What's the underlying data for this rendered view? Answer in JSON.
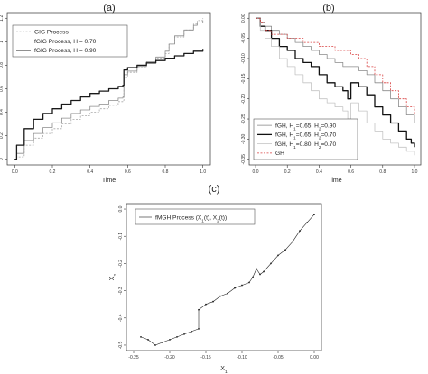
{
  "chart_data": [
    {
      "panel": "(a)",
      "type": "line",
      "xlabel": "Time",
      "ylabel": "",
      "xlim": [
        0,
        1
      ],
      "ylim": [
        0,
        1.2
      ],
      "x_ticks": [
        "0.0",
        "0.2",
        "0.4",
        "0.6",
        "0.8",
        "1.0"
      ],
      "y_ticks": [
        "0",
        "0.2",
        "0.4",
        "0.6",
        "0.8",
        "1",
        "1.2"
      ],
      "legend_position": "top-left",
      "grid": false,
      "series": [
        {
          "name": "GIG Process",
          "color": "#a8a8a8",
          "dash": "2,1.5",
          "width": 0.8,
          "x": [
            0,
            0.01,
            0.05,
            0.1,
            0.15,
            0.2,
            0.25,
            0.3,
            0.35,
            0.4,
            0.45,
            0.5,
            0.55,
            0.575,
            0.58,
            0.6,
            0.65,
            0.7,
            0.75,
            0.8,
            0.82,
            0.85,
            0.9,
            0.95,
            0.97,
            1.0
          ],
          "y": [
            0.0,
            0.02,
            0.12,
            0.18,
            0.22,
            0.26,
            0.3,
            0.34,
            0.37,
            0.4,
            0.43,
            0.46,
            0.49,
            0.5,
            0.7,
            0.74,
            0.78,
            0.82,
            0.86,
            0.9,
            0.98,
            1.04,
            1.1,
            1.15,
            1.18,
            1.2
          ]
        },
        {
          "name": "fGIG Process, H = 0.70",
          "color": "#8c8c8c",
          "dash": "",
          "width": 0.8,
          "x": [
            0,
            0.01,
            0.05,
            0.1,
            0.15,
            0.2,
            0.25,
            0.3,
            0.35,
            0.4,
            0.45,
            0.5,
            0.55,
            0.575,
            0.58,
            0.6,
            0.65,
            0.7,
            0.75,
            0.8,
            0.82,
            0.85,
            0.9,
            0.95,
            0.97,
            1.0
          ],
          "y": [
            0.0,
            0.05,
            0.16,
            0.22,
            0.27,
            0.31,
            0.35,
            0.39,
            0.42,
            0.45,
            0.47,
            0.5,
            0.52,
            0.53,
            0.72,
            0.75,
            0.79,
            0.83,
            0.87,
            0.92,
            0.98,
            1.05,
            1.1,
            1.14,
            1.16,
            1.18
          ]
        },
        {
          "name": "fGIG Process, H = 0.90",
          "color": "#1a1a1a",
          "dash": "",
          "width": 1.3,
          "x": [
            0,
            0.01,
            0.05,
            0.1,
            0.15,
            0.2,
            0.25,
            0.3,
            0.35,
            0.4,
            0.45,
            0.5,
            0.55,
            0.575,
            0.58,
            0.6,
            0.65,
            0.7,
            0.75,
            0.8,
            0.85,
            0.9,
            0.95,
            1.0
          ],
          "y": [
            0.0,
            0.12,
            0.26,
            0.34,
            0.39,
            0.43,
            0.47,
            0.5,
            0.53,
            0.56,
            0.58,
            0.6,
            0.62,
            0.63,
            0.76,
            0.78,
            0.8,
            0.82,
            0.84,
            0.86,
            0.88,
            0.9,
            0.92,
            0.94
          ]
        }
      ]
    },
    {
      "panel": "(b)",
      "type": "line",
      "xlabel": "Time",
      "ylabel": "",
      "xlim": [
        0,
        1
      ],
      "ylim": [
        -0.35,
        0.0
      ],
      "x_ticks": [
        "0.0",
        "0.2",
        "0.4",
        "0.6",
        "0.8",
        "1.0"
      ],
      "y_ticks": [
        "0.00",
        "-0.05",
        "-0.10",
        "-0.15",
        "-0.20",
        "-0.25",
        "-0.30",
        "-0.35"
      ],
      "legend_position": "bottom-left",
      "grid": false,
      "series": [
        {
          "name": "fGH, H1=0.65, H2=0.90",
          "label_parts": [
            "fGH, H",
            "1",
            "=0.65, H",
            "2",
            "=0.90"
          ],
          "color": "#8a8a8a",
          "dash": "",
          "width": 0.8,
          "x": [
            0,
            0.03,
            0.06,
            0.1,
            0.15,
            0.2,
            0.25,
            0.3,
            0.35,
            0.4,
            0.45,
            0.5,
            0.55,
            0.6,
            0.65,
            0.7,
            0.75,
            0.8,
            0.85,
            0.9,
            0.95,
            1.0
          ],
          "y": [
            0.0,
            -0.01,
            -0.02,
            -0.03,
            -0.04,
            -0.05,
            -0.06,
            -0.07,
            -0.08,
            -0.09,
            -0.1,
            -0.11,
            -0.12,
            -0.12,
            -0.13,
            -0.14,
            -0.16,
            -0.18,
            -0.2,
            -0.22,
            -0.24,
            -0.26
          ]
        },
        {
          "name": "fGH, H1=0.65, H2=0.70",
          "label_parts": [
            "fGH, H",
            "1",
            "=0.65, H",
            "2",
            "=0.70"
          ],
          "color": "#111111",
          "dash": "",
          "width": 1.3,
          "x": [
            0,
            0.03,
            0.06,
            0.1,
            0.15,
            0.2,
            0.25,
            0.3,
            0.35,
            0.4,
            0.45,
            0.5,
            0.55,
            0.58,
            0.6,
            0.65,
            0.7,
            0.75,
            0.8,
            0.85,
            0.9,
            0.95,
            0.98,
            1.0
          ],
          "y": [
            0.0,
            -0.02,
            -0.03,
            -0.05,
            -0.07,
            -0.08,
            -0.1,
            -0.11,
            -0.12,
            -0.14,
            -0.16,
            -0.17,
            -0.18,
            -0.2,
            -0.16,
            -0.17,
            -0.19,
            -0.22,
            -0.24,
            -0.26,
            -0.28,
            -0.3,
            -0.31,
            -0.32
          ]
        },
        {
          "name": "fGH, H1=0.80, H2=0.70",
          "label_parts": [
            "fGH, H",
            "1",
            "=0.80, H",
            "2",
            "=0.70"
          ],
          "color": "#c4c4c4",
          "dash": "",
          "width": 0.8,
          "x": [
            0,
            0.03,
            0.06,
            0.1,
            0.15,
            0.2,
            0.25,
            0.3,
            0.35,
            0.4,
            0.45,
            0.5,
            0.55,
            0.58,
            0.6,
            0.65,
            0.7,
            0.75,
            0.8,
            0.85,
            0.9,
            0.95,
            1.0
          ],
          "y": [
            0.0,
            -0.03,
            -0.05,
            -0.07,
            -0.1,
            -0.12,
            -0.14,
            -0.16,
            -0.18,
            -0.2,
            -0.21,
            -0.22,
            -0.23,
            -0.25,
            -0.21,
            -0.23,
            -0.26,
            -0.28,
            -0.3,
            -0.31,
            -0.32,
            -0.33,
            -0.34
          ]
        },
        {
          "name": "GH",
          "label_parts": [
            "GH"
          ],
          "color": "#d94141",
          "dash": "2,1.5",
          "width": 0.8,
          "x": [
            0,
            0.03,
            0.06,
            0.1,
            0.15,
            0.2,
            0.25,
            0.3,
            0.35,
            0.4,
            0.45,
            0.5,
            0.55,
            0.6,
            0.65,
            0.7,
            0.75,
            0.8,
            0.85,
            0.9,
            0.95,
            1.0
          ],
          "y": [
            0.0,
            -0.01,
            -0.03,
            -0.04,
            -0.04,
            -0.05,
            -0.05,
            -0.06,
            -0.06,
            -0.07,
            -0.07,
            -0.08,
            -0.08,
            -0.09,
            -0.1,
            -0.12,
            -0.14,
            -0.16,
            -0.18,
            -0.2,
            -0.22,
            -0.24
          ]
        }
      ]
    },
    {
      "panel": "(c)",
      "type": "line",
      "xlabel_parts": [
        "X",
        "1"
      ],
      "ylabel_parts": [
        "X",
        "2"
      ],
      "xlim": [
        -0.25,
        0.0
      ],
      "ylim": [
        -0.5,
        0.0
      ],
      "x_ticks": [
        "-0.25",
        "-0.20",
        "-0.15",
        "-0.10",
        "-0.05",
        "0.00"
      ],
      "y_ticks": [
        "-0.5",
        "-0.4",
        "-0.3",
        "-0.2",
        "-0.1",
        "0.0"
      ],
      "legend_position": "top-left",
      "grid": false,
      "legend_parts": [
        "fMGH Process (X",
        "1",
        "(t), X",
        "2",
        "(t))"
      ],
      "series": [
        {
          "name": "fMGH Process (X1(t), X2(t))",
          "color": "#222222",
          "dash": "",
          "width": 0.6,
          "marker": true,
          "x": [
            0.0,
            -0.01,
            -0.02,
            -0.03,
            -0.04,
            -0.05,
            -0.06,
            -0.07,
            -0.075,
            -0.08,
            -0.085,
            -0.09,
            -0.1,
            -0.11,
            -0.12,
            -0.13,
            -0.14,
            -0.15,
            -0.16,
            -0.16,
            -0.17,
            -0.18,
            -0.19,
            -0.2,
            -0.21,
            -0.22,
            -0.23,
            -0.24
          ],
          "y": [
            -0.02,
            -0.05,
            -0.08,
            -0.12,
            -0.15,
            -0.17,
            -0.2,
            -0.23,
            -0.24,
            -0.22,
            -0.25,
            -0.27,
            -0.28,
            -0.29,
            -0.31,
            -0.32,
            -0.34,
            -0.35,
            -0.37,
            -0.44,
            -0.45,
            -0.46,
            -0.47,
            -0.48,
            -0.49,
            -0.5,
            -0.48,
            -0.47
          ]
        }
      ]
    }
  ]
}
